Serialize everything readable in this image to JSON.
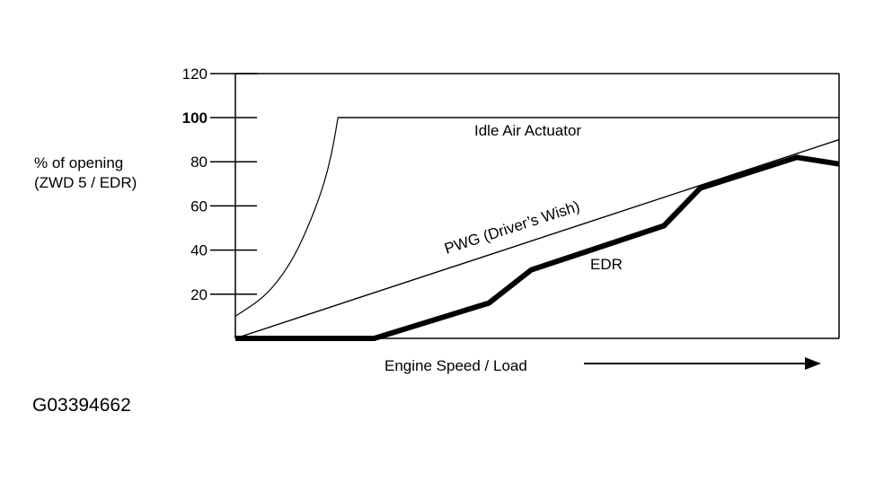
{
  "chart_data": {
    "type": "line",
    "title": "",
    "ylabel_lines": [
      "% of opening",
      "(ZWD 5 / EDR)"
    ],
    "xlabel": "Engine Speed / Load",
    "ylim": [
      0,
      120
    ],
    "xlim": [
      0,
      100
    ],
    "yticks": [
      "120",
      "100",
      "80",
      "60",
      "40",
      "20"
    ],
    "ytick_values": [
      120,
      100,
      80,
      60,
      40,
      20
    ],
    "emphasized_tick": "100",
    "reference_line": 100,
    "series": [
      {
        "name": "Idle Air Actuator",
        "style": "thin",
        "x": [
          0,
          5,
          9,
          12,
          14.5,
          16,
          17,
          25,
          100
        ],
        "y": [
          10,
          19,
          33,
          50,
          68,
          84,
          100,
          100,
          100
        ]
      },
      {
        "name": "PWG (Driver's Wish)",
        "style": "thin",
        "x": [
          0,
          100
        ],
        "y": [
          0,
          90
        ]
      },
      {
        "name": "EDR",
        "style": "thick",
        "x": [
          0,
          23,
          42,
          49,
          71,
          77,
          93,
          100
        ],
        "y": [
          0,
          0,
          16,
          31,
          51,
          68,
          82,
          79
        ]
      }
    ],
    "series_labels": {
      "idle": "Idle Air Actuator",
      "pwg": "PWG (Driver’s Wish)",
      "edr": "EDR"
    }
  },
  "figure_id": "G03394662"
}
